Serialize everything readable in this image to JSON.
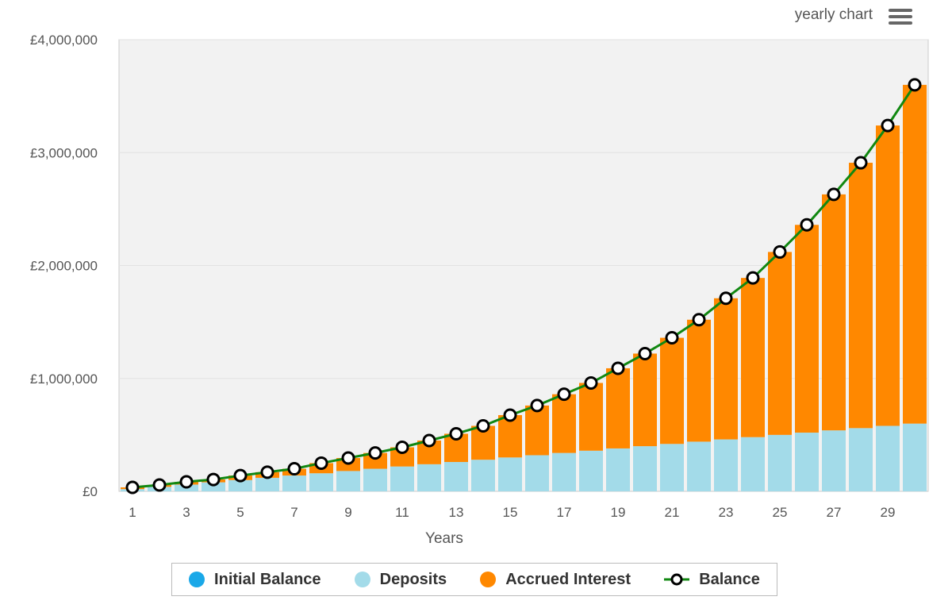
{
  "header": {
    "chart_label": "yearly chart",
    "menu_icon": "hamburger-icon"
  },
  "colors": {
    "initial": "#1aa8e8",
    "deposits": "#a3dbe9",
    "interest": "#ff8800",
    "balance_line": "#118811",
    "plot_bg": "#f2f2f2"
  },
  "chart_data": {
    "type": "bar",
    "stacked": true,
    "title": "",
    "xlabel": "Years",
    "ylabel": "",
    "ylim": [
      0,
      4000000
    ],
    "yticks": [
      "£0",
      "£1,000,000",
      "£2,000,000",
      "£3,000,000",
      "£4,000,000"
    ],
    "ytick_values": [
      0,
      1000000,
      2000000,
      3000000,
      4000000
    ],
    "x": [
      1,
      2,
      3,
      4,
      5,
      6,
      7,
      8,
      9,
      10,
      11,
      12,
      13,
      14,
      15,
      16,
      17,
      18,
      19,
      20,
      21,
      22,
      23,
      24,
      25,
      26,
      27,
      28,
      29,
      30
    ],
    "xtick_labels": [
      "1",
      "3",
      "5",
      "7",
      "9",
      "11",
      "13",
      "15",
      "17",
      "19",
      "21",
      "23",
      "25",
      "27",
      "29"
    ],
    "legend_position": "bottom",
    "series": [
      {
        "name": "Initial Balance",
        "type": "bar",
        "values": [
          0,
          0,
          0,
          0,
          0,
          0,
          0,
          0,
          0,
          0,
          0,
          0,
          0,
          0,
          0,
          0,
          0,
          0,
          0,
          0,
          0,
          0,
          0,
          0,
          0,
          0,
          0,
          0,
          0,
          0
        ]
      },
      {
        "name": "Deposits",
        "type": "bar",
        "values": [
          20000,
          40000,
          60000,
          80000,
          100000,
          120000,
          140000,
          160000,
          180000,
          200000,
          220000,
          240000,
          260000,
          280000,
          300000,
          320000,
          340000,
          360000,
          380000,
          400000,
          420000,
          440000,
          460000,
          480000,
          500000,
          520000,
          540000,
          560000,
          580000,
          600000
        ]
      },
      {
        "name": "Accrued Interest",
        "type": "bar",
        "values": [
          15000,
          16000,
          24000,
          25000,
          40000,
          50000,
          60000,
          90000,
          115000,
          140000,
          170000,
          210000,
          250000,
          300000,
          375000,
          440000,
          520000,
          600000,
          710000,
          820000,
          940000,
          1080000,
          1250000,
          1410000,
          1620000,
          1840000,
          2090000,
          2350000,
          2660000,
          3000000
        ]
      },
      {
        "name": "Balance",
        "type": "line",
        "values": [
          35000,
          56000,
          84000,
          105000,
          140000,
          170000,
          200000,
          250000,
          295000,
          340000,
          390000,
          450000,
          510000,
          580000,
          675000,
          760000,
          860000,
          960000,
          1090000,
          1220000,
          1360000,
          1520000,
          1710000,
          1890000,
          2120000,
          2360000,
          2630000,
          2910000,
          3240000,
          3600000
        ]
      }
    ]
  }
}
